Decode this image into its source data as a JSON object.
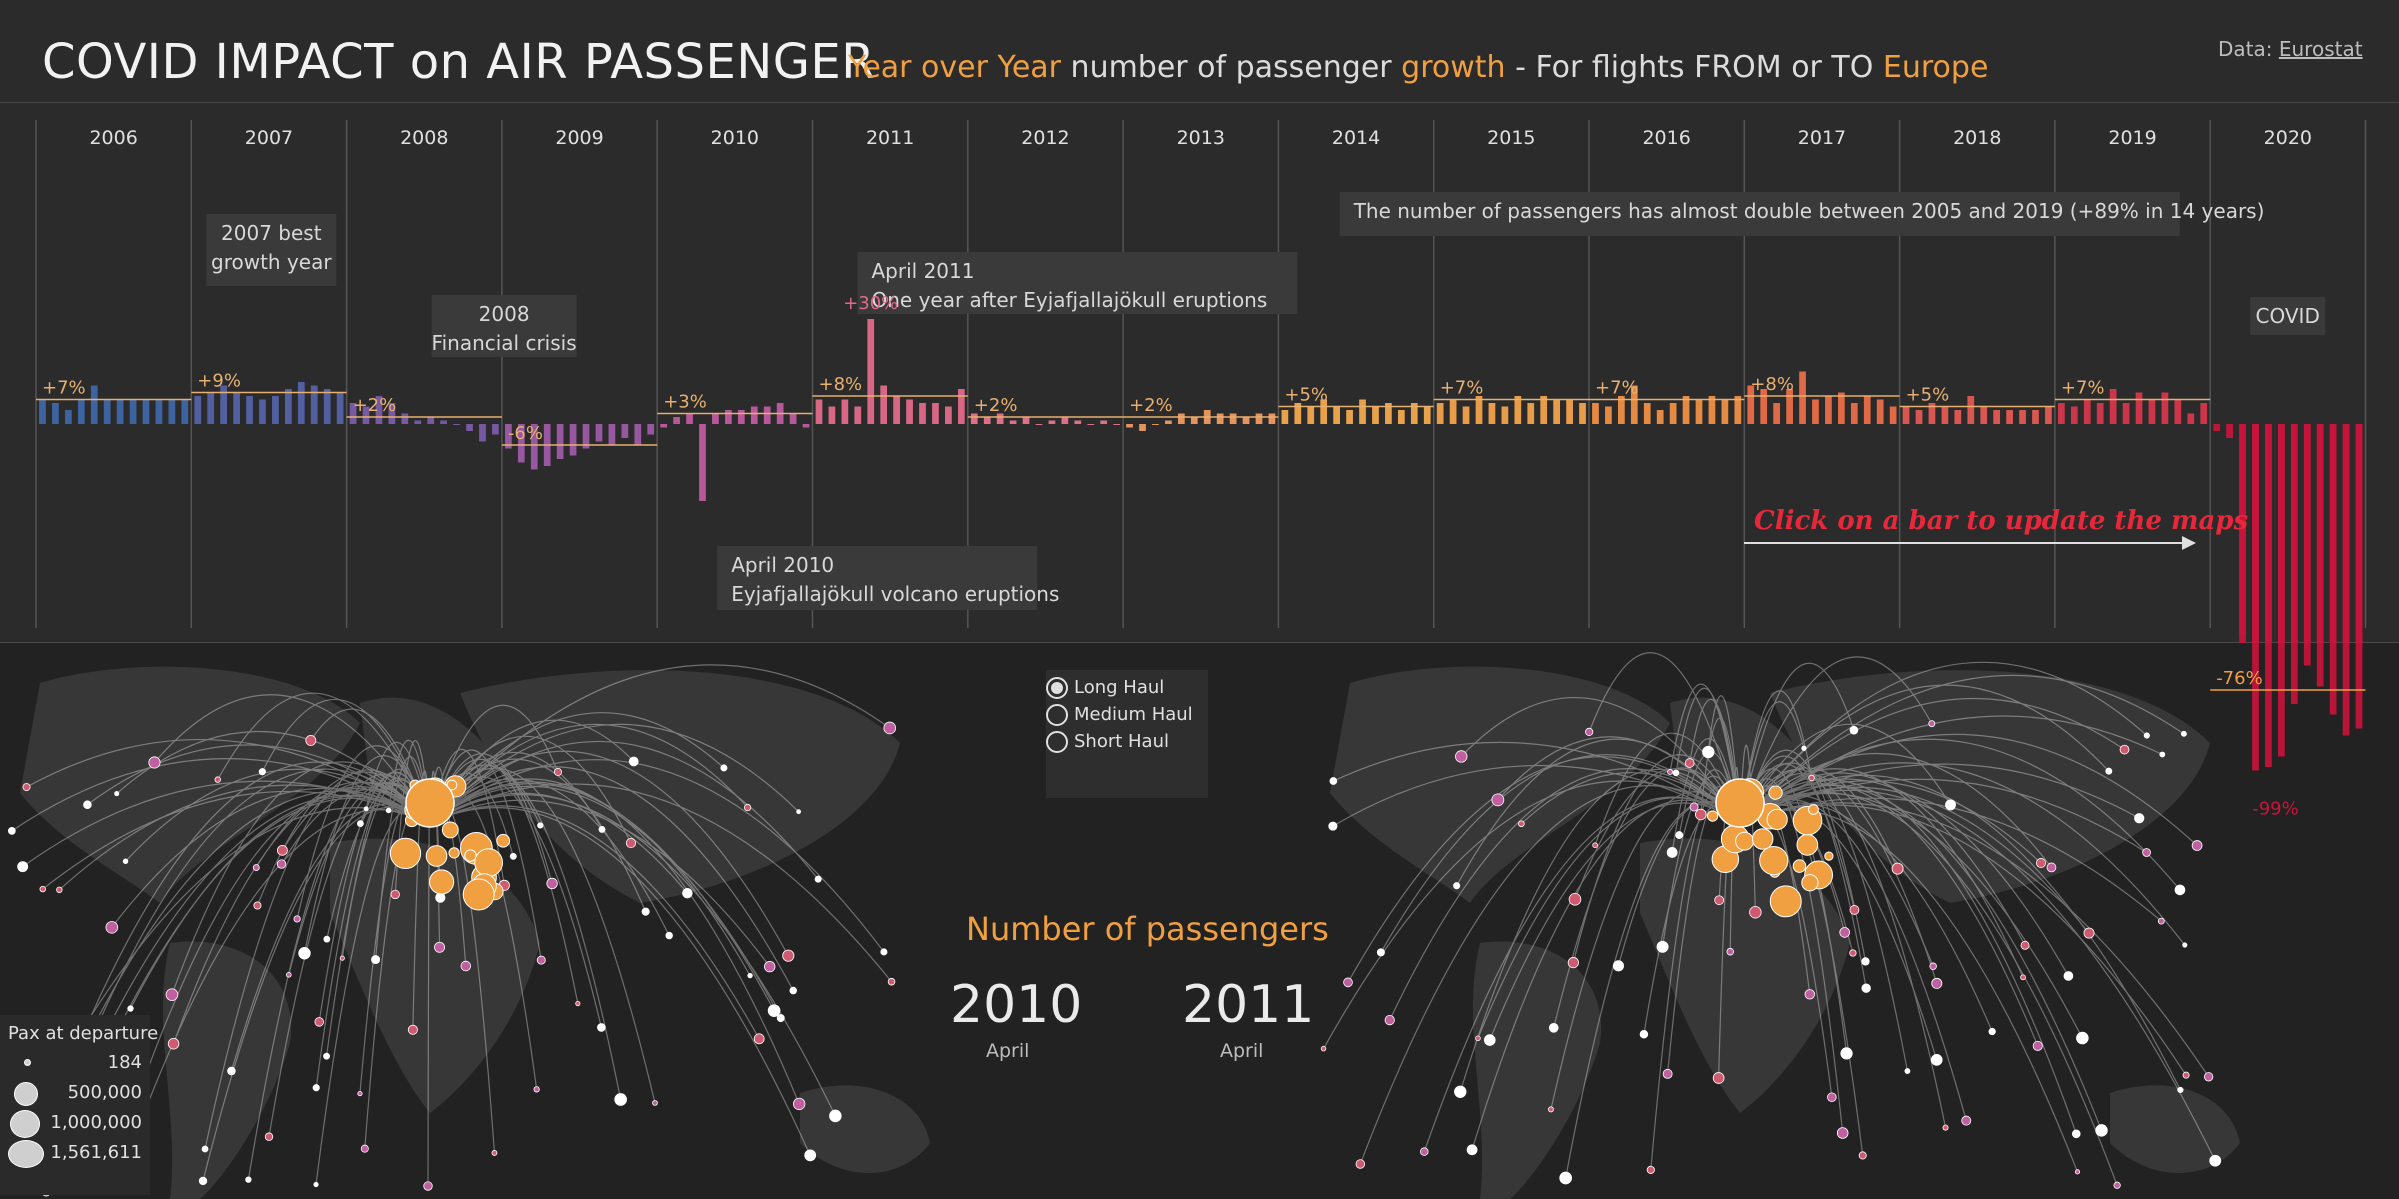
{
  "header": {
    "title": "COVID IMPACT on AIR PASSENGER",
    "subtitle_parts": [
      "Year over Year",
      " number of passenger ",
      "growth",
      " - For flights FROM or TO ",
      "Europe"
    ],
    "source_label": "Data:",
    "source_link": "Eurostat"
  },
  "colors": {
    "background": "#2b2b2b",
    "accent": "#f0a040",
    "covid_red": "#c8143c",
    "hint_red": "#e8283a"
  },
  "chart_data": {
    "type": "bar",
    "title": "",
    "xlabel": "",
    "ylabel": "",
    "x_unit": "month",
    "y_unit": "% growth YoY",
    "ylim": [
      -100,
      40
    ],
    "grid": false,
    "years": [
      "2006",
      "2007",
      "2008",
      "2009",
      "2010",
      "2011",
      "2012",
      "2013",
      "2014",
      "2015",
      "2016",
      "2017",
      "2018",
      "2019",
      "2020"
    ],
    "monthly_growth": [
      [
        7,
        6,
        4,
        7,
        11,
        7,
        7,
        7,
        7,
        7,
        7,
        7
      ],
      [
        8,
        9,
        11,
        9,
        8,
        7,
        8,
        10,
        12,
        11,
        10,
        9
      ],
      [
        6,
        5,
        8,
        6,
        3,
        1,
        2,
        1,
        0,
        -2,
        -5,
        -3
      ],
      [
        -7,
        -11,
        -13,
        -12,
        -10,
        -9,
        -7,
        -5,
        -6,
        -4,
        -6,
        -3
      ],
      [
        -1,
        2,
        3,
        -22,
        3,
        4,
        4,
        5,
        5,
        6,
        3,
        -1
      ],
      [
        7,
        5,
        7,
        5,
        30,
        11,
        8,
        7,
        6,
        6,
        5,
        10
      ],
      [
        3,
        2,
        3,
        1,
        2,
        0,
        1,
        2,
        1,
        0,
        1,
        0
      ],
      [
        -1,
        -2,
        0,
        1,
        3,
        2,
        4,
        3,
        3,
        2,
        3,
        3
      ],
      [
        4,
        6,
        5,
        7,
        5,
        4,
        7,
        5,
        6,
        4,
        6,
        5
      ],
      [
        6,
        7,
        5,
        8,
        6,
        5,
        8,
        6,
        8,
        7,
        7,
        6
      ],
      [
        6,
        5,
        8,
        11,
        6,
        4,
        6,
        8,
        7,
        8,
        7,
        8
      ],
      [
        11,
        10,
        6,
        10,
        15,
        7,
        8,
        9,
        6,
        8,
        7,
        5
      ],
      [
        5,
        4,
        6,
        5,
        4,
        8,
        5,
        4,
        4,
        4,
        4,
        5
      ],
      [
        6,
        5,
        7,
        6,
        10,
        6,
        9,
        7,
        9,
        7,
        3,
        6
      ],
      [
        -2,
        -4,
        -60,
        -99,
        -98,
        -95,
        -80,
        -69,
        -75,
        -83,
        -89,
        -87
      ]
    ],
    "yearly_avg": [
      7,
      9,
      2,
      -6,
      3,
      8,
      2,
      2,
      5,
      7,
      7,
      8,
      5,
      7,
      -76
    ],
    "labels_over_bar": [
      {
        "year": "2011",
        "month": 5,
        "text": "+30%"
      },
      {
        "year": "2020",
        "month": 4,
        "text": "-99%"
      }
    ],
    "annotations": [
      {
        "year": "2007",
        "text": [
          "2007 best",
          "growth year"
        ]
      },
      {
        "year": "2008",
        "text": [
          "2008",
          "Financial crisis"
        ]
      },
      {
        "year": "2010",
        "text": [
          "April 2010",
          "Eyjafjallajökull  volcano eruptions"
        ]
      },
      {
        "year": "2011",
        "text": [
          "April 2011",
          "One year after Eyjafjallajökull eruptions"
        ]
      },
      {
        "year": "2015",
        "text": [
          "The number of passengers has almost double between 2005 and 2019 (+89% in 14 years)"
        ]
      },
      {
        "year": "2020",
        "text": [
          "COVID"
        ]
      }
    ],
    "avg_labels": [
      "+7%",
      "+9%",
      "+2%",
      "-6%",
      "+3%",
      "+8%",
      "+2%",
      "+2%",
      "+5%",
      "+7%",
      "+7%",
      "+8%",
      "+5%",
      "+7%",
      "-76%"
    ],
    "hint": "Click on a bar to update the maps"
  },
  "maps": {
    "title": "Number of passengers",
    "left": {
      "year": "2010",
      "month": "April"
    },
    "right": {
      "year": "2011",
      "month": "April"
    },
    "haul_options": [
      {
        "label": "Long Haul",
        "selected": true
      },
      {
        "label": "Medium Haul",
        "selected": false
      },
      {
        "label": "Short Haul",
        "selected": false
      }
    ],
    "size_legend": {
      "title": "Pax at departure",
      "values": [
        "184",
        "500,000",
        "1,000,000",
        "1,561,611"
      ]
    }
  }
}
